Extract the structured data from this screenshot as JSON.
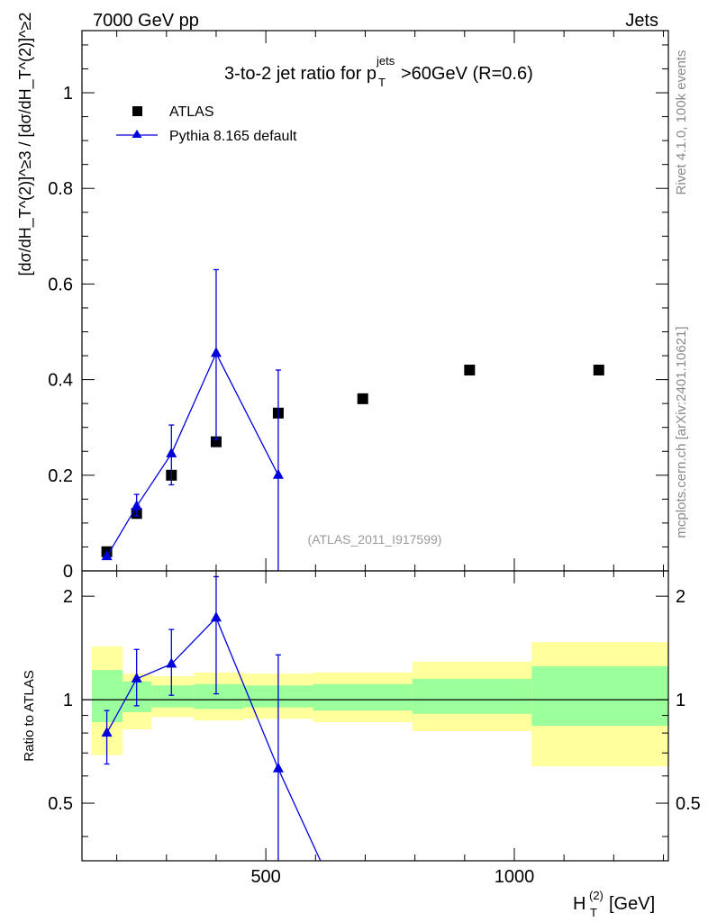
{
  "header": {
    "left": "7000 GeV pp",
    "right": "Jets"
  },
  "side": {
    "rivet": "Rivet 4.1.0,  100k events",
    "mcplots": "mcplots.cern.ch [arXiv:2401.10621]"
  },
  "chart_data": [
    {
      "type": "scatter",
      "title_main": "3-to-2 jet ratio for p",
      "title_sup": "jets",
      "title_sub": "T",
      "title_rest": ">60GeV (R=0.6)",
      "ylabel": "[dσ/dH_T^(2)]^≥3 / [dσ/dH_T^(2)]^≥2",
      "ylim": [
        0,
        1.13
      ],
      "xlim": [
        130,
        1310
      ],
      "yticks": [
        0,
        0.2,
        0.4,
        0.6,
        0.8,
        1
      ],
      "ytick_labels": [
        "0",
        "0.2",
        "0.4",
        "0.6",
        "0.8",
        "1"
      ],
      "legend": {
        "data": "ATLAS",
        "mc": "Pythia 8.165 default"
      },
      "watermark": "(ATLAS_2011_I917599)",
      "series": [
        {
          "name": "ATLAS",
          "marker": "square",
          "color": "#000000",
          "x": [
            180,
            240,
            310,
            400,
            525,
            695,
            910,
            1170
          ],
          "y": [
            0.04,
            0.12,
            0.2,
            0.27,
            0.33,
            0.36,
            0.42,
            0.42
          ]
        },
        {
          "name": "Pythia 8.165 default",
          "marker": "triangle",
          "color": "#0000dd",
          "x": [
            180,
            240,
            310,
            400,
            525,
            610
          ],
          "y": [
            0.03,
            0.135,
            0.245,
            0.455,
            0.2,
            null
          ],
          "yerr_low": [
            0.0,
            0.02,
            0.065,
            0.18,
            0.2
          ],
          "yerr_high": [
            0.0,
            0.025,
            0.06,
            0.175,
            0.22
          ]
        }
      ]
    },
    {
      "type": "ratio",
      "ylabel": "Ratio to ATLAS",
      "ylim": [
        0.34,
        2.37
      ],
      "log_y": true,
      "xlim": [
        130,
        1310
      ],
      "yticks": [
        0.5,
        1,
        2
      ],
      "ytick_labels": [
        "0.5",
        "1",
        "2"
      ],
      "xticks": [
        500,
        1000
      ],
      "xtick_labels": [
        "500",
        "1000"
      ],
      "xlabel_main": "H",
      "xlabel_sup": "(2)",
      "xlabel_sub": "T",
      "xlabel_rest": " [GeV]",
      "bins": [
        {
          "x0": 150,
          "x1": 212,
          "g_lo": 0.86,
          "g_hi": 1.22,
          "y_lo": 0.69,
          "y_hi": 1.43
        },
        {
          "x0": 212,
          "x1": 270,
          "g_lo": 0.92,
          "g_hi": 1.13,
          "y_lo": 0.82,
          "y_hi": 1.19
        },
        {
          "x0": 270,
          "x1": 355,
          "g_lo": 0.95,
          "g_hi": 1.1,
          "y_lo": 0.89,
          "y_hi": 1.17
        },
        {
          "x0": 355,
          "x1": 455,
          "g_lo": 0.94,
          "g_hi": 1.11,
          "y_lo": 0.87,
          "y_hi": 1.2
        },
        {
          "x0": 455,
          "x1": 595,
          "g_lo": 0.95,
          "g_hi": 1.1,
          "y_lo": 0.88,
          "y_hi": 1.19
        },
        {
          "x0": 595,
          "x1": 795,
          "g_lo": 0.93,
          "g_hi": 1.11,
          "y_lo": 0.86,
          "y_hi": 1.2
        },
        {
          "x0": 795,
          "x1": 1035,
          "g_lo": 0.91,
          "g_hi": 1.15,
          "y_lo": 0.81,
          "y_hi": 1.29
        },
        {
          "x0": 1035,
          "x1": 1310,
          "g_lo": 0.84,
          "g_hi": 1.25,
          "y_lo": 0.64,
          "y_hi": 1.47
        }
      ],
      "band_colors": {
        "inner": "#9bff9b",
        "outer": "#ffff9b"
      },
      "mc_ratio": {
        "x": [
          180,
          240,
          310,
          400,
          525,
          610
        ],
        "y": [
          0.8,
          1.15,
          1.27,
          1.73,
          0.63,
          0.34
        ],
        "err_low": [
          0.15,
          0.19,
          0.24,
          0.69,
          0.63,
          0.0
        ],
        "err_high": [
          0.13,
          0.25,
          0.33,
          0.55,
          0.72,
          0.0
        ]
      }
    }
  ]
}
